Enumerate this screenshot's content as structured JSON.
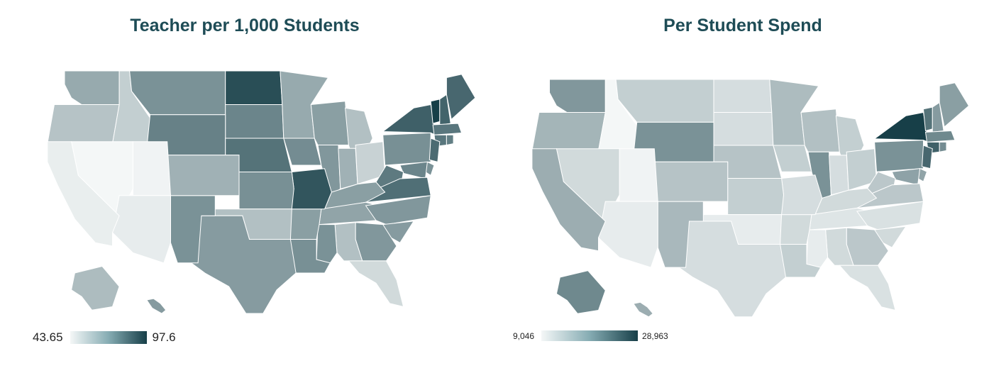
{
  "panels": [
    {
      "id": "teachers",
      "title": "Teacher per 1,000 Students",
      "legend": {
        "min_label": "43.65",
        "max_label": "97.6",
        "min": 43.65,
        "max": 97.6
      },
      "scale": {
        "low_color": "#f4f7f7",
        "high_color": "#173f48"
      },
      "state_levels": {
        "WA": 0.42,
        "OR": 0.28,
        "ID": 0.22,
        "MT": 0.55,
        "ND": 0.92,
        "SD": 0.62,
        "MN": 0.42,
        "WI": 0.48,
        "MI": 0.3,
        "WY": 0.64,
        "NE": 0.72,
        "IA": 0.58,
        "IL": 0.52,
        "IN": 0.38,
        "OH": 0.2,
        "PA": 0.56,
        "NY": 0.82,
        "VT": 1.0,
        "NH": 0.8,
        "ME": 0.78,
        "MA": 0.7,
        "CT": 0.7,
        "RI": 0.66,
        "NJ": 0.76,
        "DE": 0.55,
        "MD": 0.62,
        "WV": 0.68,
        "VA": 0.74,
        "KY": 0.48,
        "TN": 0.45,
        "NC": 0.52,
        "SC": 0.5,
        "GA": 0.52,
        "AL": 0.3,
        "MS": 0.55,
        "LA": 0.56,
        "AR": 0.48,
        "MO": 0.88,
        "KS": 0.56,
        "OK": 0.3,
        "TX": 0.5,
        "NM": 0.55,
        "CO": 0.38,
        "UT": 0.02,
        "NV": 0.0,
        "AZ": 0.06,
        "CA": 0.05,
        "FL": 0.16,
        "AK": 0.32,
        "HI": 0.5
      }
    },
    {
      "id": "spend",
      "title": "Per Student Spend",
      "legend": {
        "min_label": "9,046",
        "max_label": "28,963",
        "min": 9046,
        "max": 28963
      },
      "scale": {
        "low_color": "#f4f7f7",
        "high_color": "#173f48"
      },
      "state_levels": {
        "WA": 0.52,
        "OR": 0.36,
        "ID": 0.0,
        "MT": 0.22,
        "ND": 0.14,
        "SD": 0.14,
        "MN": 0.32,
        "WI": 0.3,
        "MI": 0.22,
        "WY": 0.55,
        "NE": 0.28,
        "IA": 0.22,
        "IL": 0.55,
        "IN": 0.14,
        "OH": 0.22,
        "PA": 0.55,
        "NY": 1.0,
        "VT": 0.72,
        "NH": 0.5,
        "ME": 0.48,
        "MA": 0.6,
        "CT": 0.82,
        "RI": 0.58,
        "NJ": 0.78,
        "DE": 0.45,
        "MD": 0.46,
        "WV": 0.26,
        "VA": 0.26,
        "KY": 0.16,
        "TN": 0.1,
        "NC": 0.12,
        "SC": 0.16,
        "GA": 0.26,
        "AL": 0.16,
        "MS": 0.06,
        "LA": 0.22,
        "AR": 0.16,
        "MO": 0.14,
        "KS": 0.22,
        "OK": 0.06,
        "TX": 0.14,
        "NM": 0.34,
        "CO": 0.28,
        "UT": 0.02,
        "NV": 0.16,
        "AZ": 0.06,
        "CA": 0.4,
        "FL": 0.12,
        "AK": 0.6,
        "HI": 0.4
      }
    }
  ]
}
